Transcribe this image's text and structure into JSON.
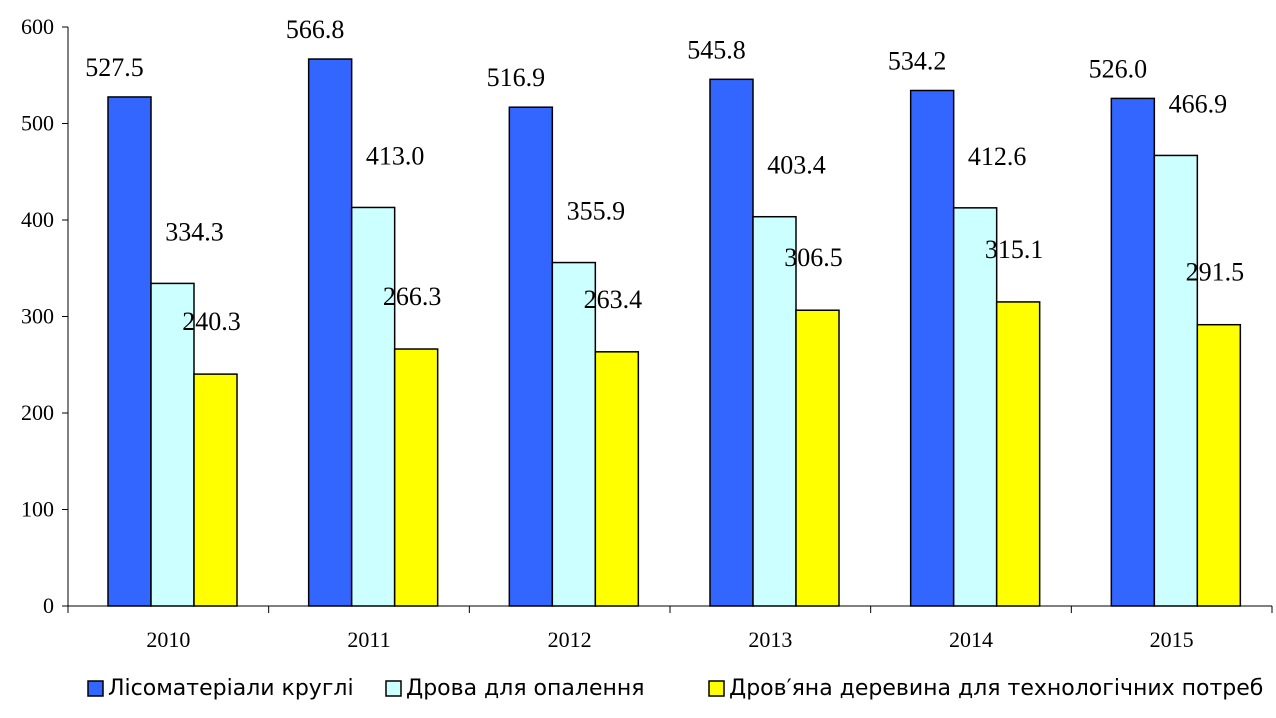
{
  "chart_data": {
    "type": "bar",
    "categories": [
      "2010",
      "2011",
      "2012",
      "2013",
      "2014",
      "2015"
    ],
    "series": [
      {
        "name": "Лісоматеріали круглі",
        "color": "#3366FF",
        "values": [
          527.5,
          566.8,
          516.9,
          545.8,
          534.2,
          526.0
        ],
        "labels": [
          "527.5",
          "566.8",
          "516.9",
          "545.8",
          "534.2",
          "526.0"
        ]
      },
      {
        "name": "Дрова для опалення",
        "color": "#CCFFFF",
        "values": [
          334.3,
          413.0,
          355.9,
          403.4,
          412.6,
          466.9
        ],
        "labels": [
          "334.3",
          "413.0",
          "355.9",
          "403.4",
          "412.6",
          "466.9"
        ]
      },
      {
        "name": "Дров′яна деревина для технологічних потреб",
        "color": "#FFFF00",
        "values": [
          240.3,
          266.3,
          263.4,
          306.5,
          315.1,
          291.5
        ],
        "labels": [
          "240.3",
          "266.3",
          "263.4",
          "306.5",
          "315.1",
          "291.5"
        ]
      }
    ],
    "yticks": [
      "0",
      "100",
      "200",
      "300",
      "400",
      "500",
      "600"
    ],
    "ylim": [
      0,
      600
    ],
    "grid": false,
    "legend_position": "bottom"
  }
}
